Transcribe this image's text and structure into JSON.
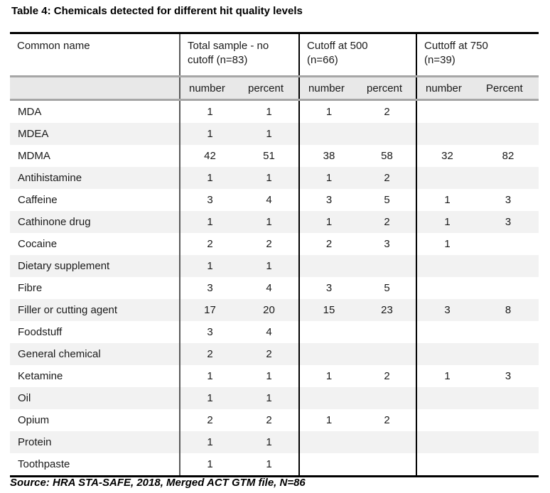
{
  "title": "Table 4: Chemicals detected for different hit quality levels",
  "table": {
    "columns": {
      "common_name": "Common name",
      "groups": [
        {
          "label": "Total sample - no\ncutoff (n=83)",
          "sub": [
            "number",
            "percent"
          ]
        },
        {
          "label": "Cutoff at 500\n(n=66)",
          "sub": [
            "number",
            "percent"
          ]
        },
        {
          "label": "Cuttoff at 750\n(n=39)",
          "sub": [
            "number",
            "Percent"
          ]
        }
      ]
    },
    "rows": [
      {
        "name": "MDA",
        "values": [
          "1",
          "1",
          "1",
          "2",
          "",
          ""
        ]
      },
      {
        "name": "MDEA",
        "values": [
          "1",
          "1",
          "",
          "",
          "",
          ""
        ]
      },
      {
        "name": "MDMA",
        "values": [
          "42",
          "51",
          "38",
          "58",
          "32",
          "82"
        ]
      },
      {
        "name": "Antihistamine",
        "values": [
          "1",
          "1",
          "1",
          "2",
          "",
          ""
        ]
      },
      {
        "name": "Caffeine",
        "values": [
          "3",
          "4",
          "3",
          "5",
          "1",
          "3"
        ]
      },
      {
        "name": "Cathinone drug",
        "values": [
          "1",
          "1",
          "1",
          "2",
          "1",
          "3"
        ]
      },
      {
        "name": "Cocaine",
        "values": [
          "2",
          "2",
          "2",
          "3",
          "1",
          ""
        ]
      },
      {
        "name": "Dietary supplement",
        "values": [
          "1",
          "1",
          "",
          "",
          "",
          ""
        ]
      },
      {
        "name": "Fibre",
        "values": [
          "3",
          "4",
          "3",
          "5",
          "",
          ""
        ]
      },
      {
        "name": "Filler or cutting agent",
        "values": [
          "17",
          "20",
          "15",
          "23",
          "3",
          "8"
        ]
      },
      {
        "name": "Foodstuff",
        "values": [
          "3",
          "4",
          "",
          "",
          "",
          ""
        ]
      },
      {
        "name": "General chemical",
        "values": [
          "2",
          "2",
          "",
          "",
          "",
          ""
        ]
      },
      {
        "name": "Ketamine",
        "values": [
          "1",
          "1",
          "1",
          "2",
          "1",
          "3"
        ]
      },
      {
        "name": "Oil",
        "values": [
          "1",
          "1",
          "",
          "",
          "",
          ""
        ]
      },
      {
        "name": "Opium",
        "values": [
          "2",
          "2",
          "1",
          "2",
          "",
          ""
        ]
      },
      {
        "name": "Protein",
        "values": [
          "1",
          "1",
          "",
          "",
          "",
          ""
        ]
      },
      {
        "name": "Toothpaste",
        "values": [
          "1",
          "1",
          "",
          "",
          "",
          ""
        ]
      }
    ]
  },
  "source": "Source: HRA STA-SAFE, 2018, Merged ACT GTM file, N=86",
  "colors": {
    "table_border": "#000000",
    "subheader_bg": "#e8e8e8",
    "subheader_rule": "#a6a6a6",
    "row_alt_bg": "#f2f2f2",
    "divider_gray": "#595959",
    "divider_black": "#000000"
  }
}
